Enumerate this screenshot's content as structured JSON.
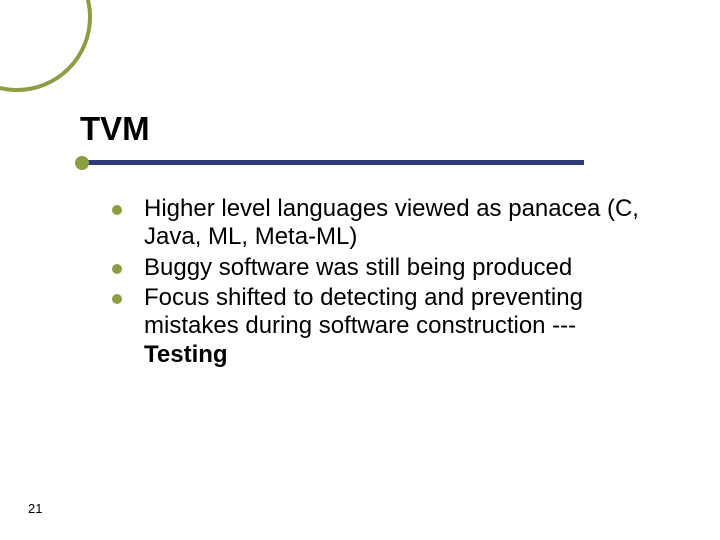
{
  "slide": {
    "title": "TVM",
    "title_fontsize": 33,
    "title_fontweight": "bold",
    "accent_color": "#8c9e43",
    "title_bar_color": "#2e3a7a",
    "title_bar_width": 504,
    "background_color": "#ffffff",
    "text_color": "#000000",
    "body_fontsize": 24,
    "bullet_color": "#8c9e43",
    "page_number": "21",
    "bullets": [
      {
        "text": "Higher level languages viewed as panacea (C, Java, ML, Meta-ML)"
      },
      {
        "text": "Buggy software was still being produced"
      },
      {
        "text_html": "Focus shifted to detecting and preventing mistakes during software construction --- <b>Testing</b>",
        "text": "Focus shifted to detecting and preventing mistakes during software construction --- Testing"
      }
    ]
  }
}
